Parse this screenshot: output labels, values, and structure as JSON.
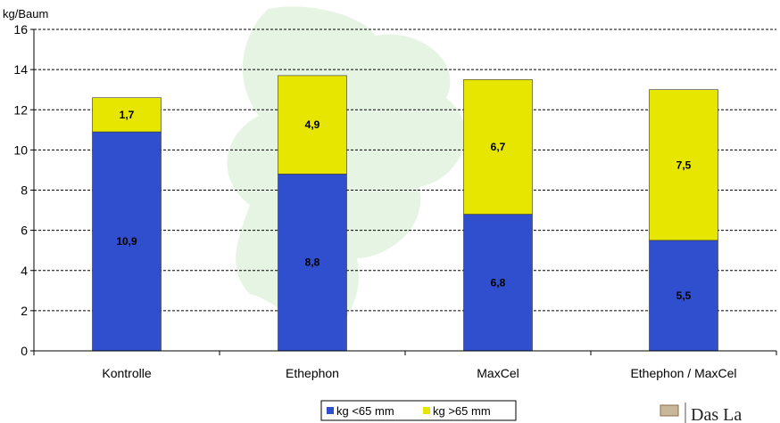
{
  "chart_data": {
    "type": "bar",
    "stacked": true,
    "title": "",
    "xlabel": "",
    "ylabel": "kg/Baum",
    "ylim": [
      0,
      16
    ],
    "yticks": [
      0,
      2,
      4,
      6,
      8,
      10,
      12,
      14,
      16
    ],
    "grid": true,
    "legend_position": "bottom",
    "categories": [
      "Kontrolle",
      "Ethephon",
      "MaxCel",
      "Ethephon / MaxCel"
    ],
    "series": [
      {
        "name": "kg <65 mm",
        "color": "#2f4fcf",
        "values": [
          10.9,
          8.8,
          6.8,
          5.5
        ],
        "labels": [
          "10,9",
          "8,8",
          "6,8",
          "5,5"
        ]
      },
      {
        "name": "kg >65 mm",
        "color": "#e6e600",
        "values": [
          1.7,
          4.9,
          6.7,
          7.5
        ],
        "labels": [
          "1,7",
          "4,9",
          "6,7",
          "7,5"
        ]
      }
    ]
  },
  "logo_text": "Das La"
}
